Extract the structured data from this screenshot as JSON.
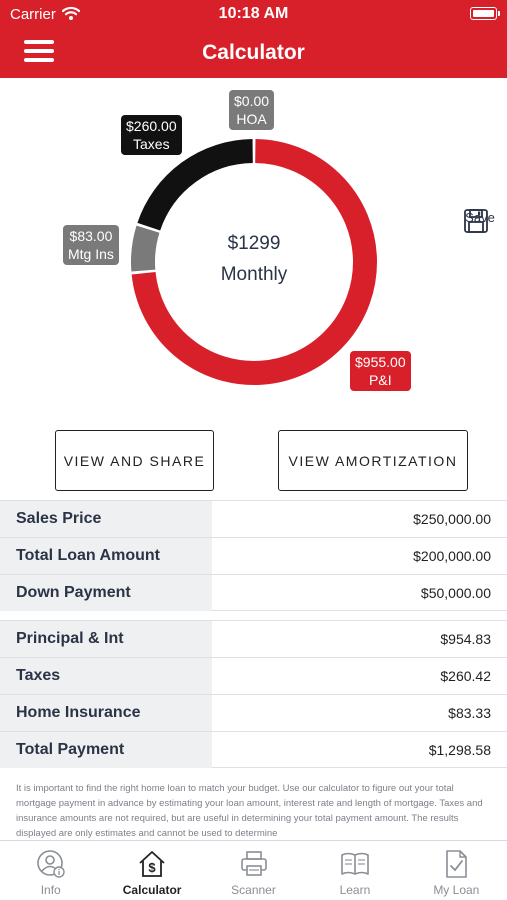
{
  "status_bar": {
    "carrier": "Carrier",
    "time": "10:18 AM"
  },
  "header": {
    "title": "Calculator"
  },
  "chart_data": {
    "type": "pie",
    "style": "donut",
    "center_amount": "$1299",
    "center_label": "Monthly",
    "slices": [
      {
        "label": "P&I",
        "value": 955.0,
        "value_label": "$955.00",
        "color": "#d8202b"
      },
      {
        "label": "Mtg Ins",
        "value": 83.0,
        "value_label": "$83.00",
        "color": "#7a7a7a"
      },
      {
        "label": "Taxes",
        "value": 260.0,
        "value_label": "$260.00",
        "color": "#111111"
      },
      {
        "label": "HOA",
        "value": 0.0,
        "value_label": "$0.00",
        "color": "#7a7a7a"
      }
    ]
  },
  "save": {
    "label": "Save"
  },
  "buttons": {
    "share": "VIEW AND SHARE",
    "amortization": "VIEW AMORTIZATION"
  },
  "loan_table": [
    {
      "label": "Sales Price",
      "value": "$250,000.00"
    },
    {
      "label": "Total Loan Amount",
      "value": "$200,000.00"
    },
    {
      "label": "Down Payment",
      "value": "$50,000.00"
    }
  ],
  "payment_table": [
    {
      "label": "Principal & Int",
      "value": "$954.83"
    },
    {
      "label": "Taxes",
      "value": "$260.42"
    },
    {
      "label": "Home Insurance",
      "value": "$83.33"
    },
    {
      "label": "Total Payment",
      "value": "$1,298.58"
    }
  ],
  "disclaimer": "It is important to find the right home loan to match your budget. Use our calculator to figure out your total mortgage payment in advance by estimating your loan amount, interest rate and length of mortgage. Taxes and insurance amounts are not required, but are useful in determining your total payment amount. The results displayed are only estimates and cannot be used to determine",
  "tabbar": {
    "active": "calculator",
    "tabs": [
      {
        "id": "info",
        "label": "Info",
        "icon": "info-person-icon"
      },
      {
        "id": "calculator",
        "label": "Calculator",
        "icon": "house-dollar-icon"
      },
      {
        "id": "scanner",
        "label": "Scanner",
        "icon": "printer-icon"
      },
      {
        "id": "learn",
        "label": "Learn",
        "icon": "book-icon"
      },
      {
        "id": "myloan",
        "label": "My Loan",
        "icon": "document-check-icon"
      }
    ]
  }
}
